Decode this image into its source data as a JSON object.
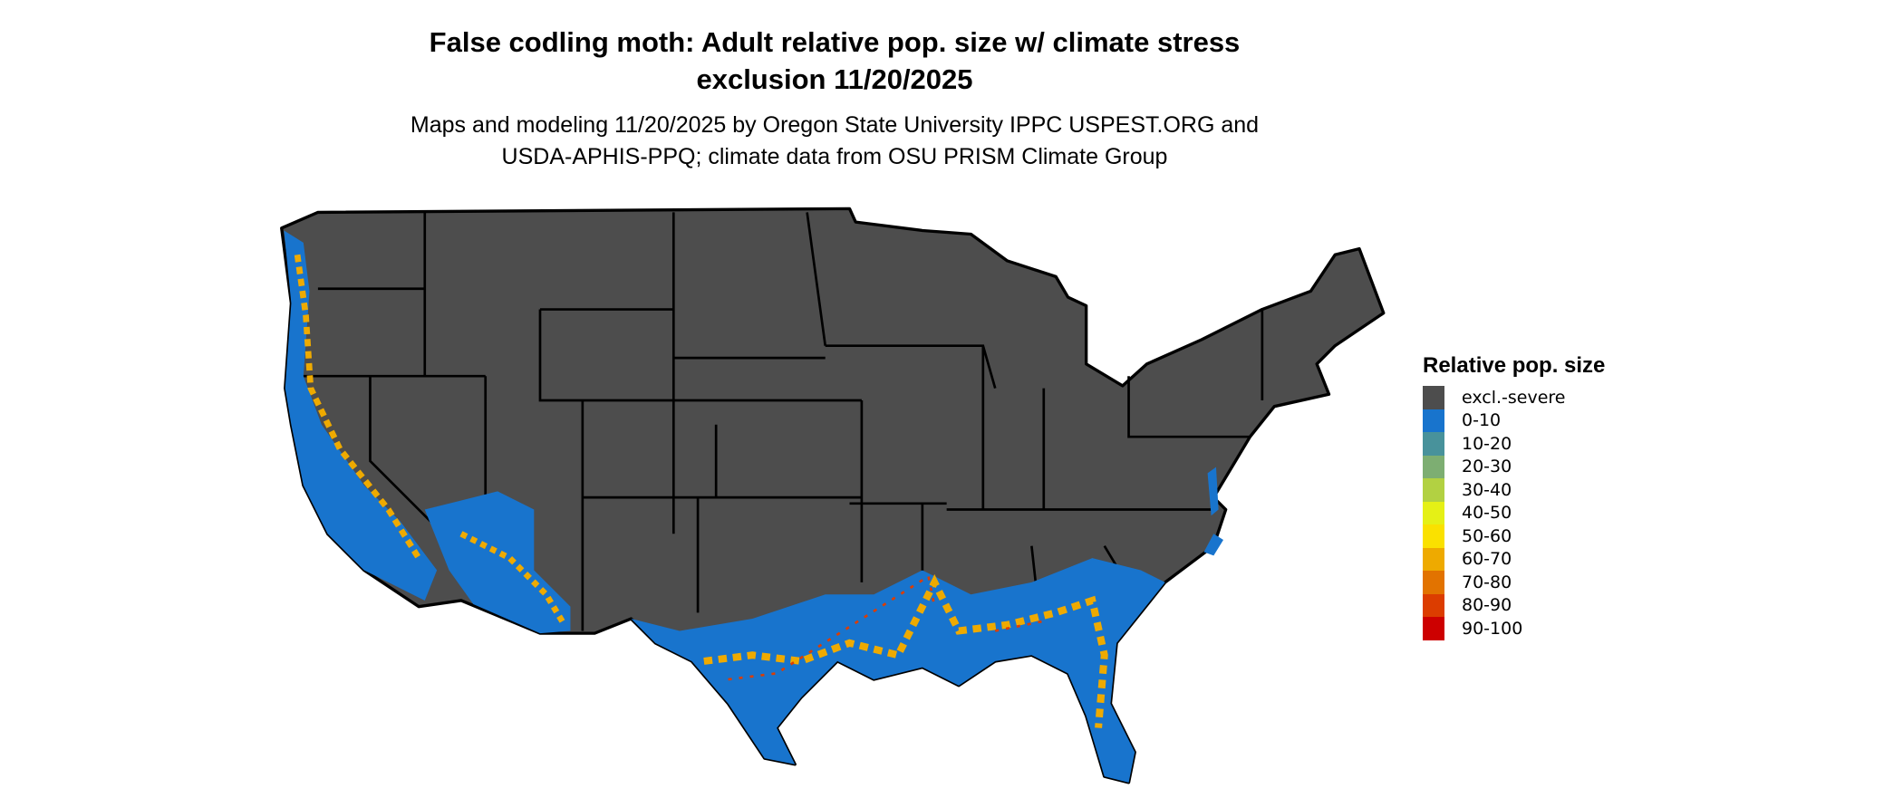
{
  "title": {
    "line1": "False codling moth: Adult relative pop. size w/ climate stress",
    "line2": "exclusion 11/20/2025"
  },
  "subtitle": {
    "line1": "Maps and modeling 11/20/2025 by Oregon State University IPPC USPEST.ORG and",
    "line2": "USDA-APHIS-PPQ; climate data from OSU PRISM Climate Group"
  },
  "legend": {
    "title": "Relative pop. size",
    "items": [
      {
        "label": "excl.-severe",
        "color": "#4d4d4d"
      },
      {
        "label": "0-10",
        "color": "#1874cd"
      },
      {
        "label": "10-20",
        "color": "#48929b"
      },
      {
        "label": "20-30",
        "color": "#7dae72"
      },
      {
        "label": "30-40",
        "color": "#b2d142"
      },
      {
        "label": "40-50",
        "color": "#e5f016"
      },
      {
        "label": "50-60",
        "color": "#fae100"
      },
      {
        "label": "60-70",
        "color": "#eeaa00"
      },
      {
        "label": "70-80",
        "color": "#e27300"
      },
      {
        "label": "80-90",
        "color": "#dc3d00"
      },
      {
        "label": "90-100",
        "color": "#cd0000"
      }
    ]
  }
}
